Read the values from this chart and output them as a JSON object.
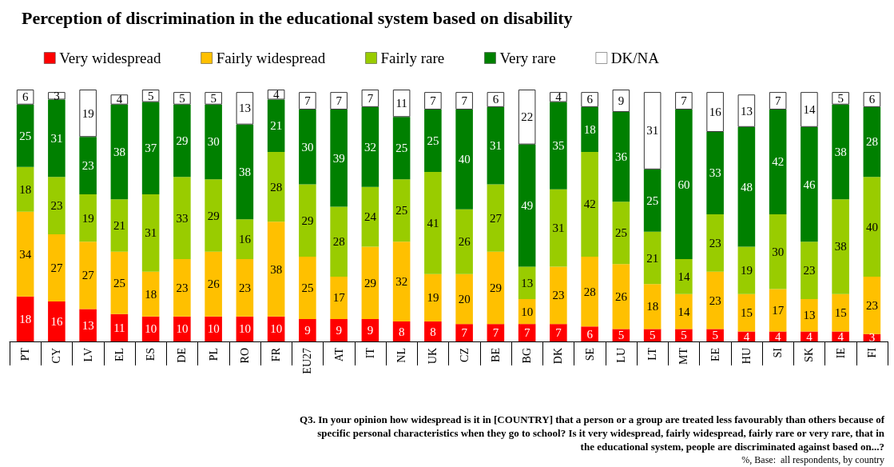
{
  "chart_data": {
    "type": "bar",
    "stacked": true,
    "data_labels": true,
    "legend": "top",
    "title": "Perception of discrimination in the educational system based on disability",
    "categories": [
      "PT",
      "CY",
      "LV",
      "EL",
      "ES",
      "DE",
      "PL",
      "RO",
      "FR",
      "EU27",
      "AT",
      "IT",
      "NL",
      "UK",
      "CZ",
      "BE",
      "BG",
      "DK",
      "SE",
      "LU",
      "LT",
      "MT",
      "EE",
      "HU",
      "SI",
      "SK",
      "IE",
      "FI"
    ],
    "series": [
      {
        "name": "Very widespread",
        "color": "#ff0000",
        "values": [
          18,
          16,
          13,
          11,
          10,
          10,
          10,
          10,
          10,
          9,
          9,
          9,
          8,
          8,
          7,
          7,
          7,
          7,
          6,
          5,
          5,
          5,
          5,
          4,
          4,
          4,
          4,
          3
        ]
      },
      {
        "name": "Fairly widespread",
        "color": "#ffc000",
        "values": [
          34,
          27,
          27,
          25,
          18,
          23,
          26,
          23,
          38,
          25,
          17,
          29,
          32,
          19,
          20,
          29,
          10,
          23,
          28,
          26,
          18,
          14,
          23,
          15,
          17,
          13,
          15,
          23
        ]
      },
      {
        "name": "Fairly rare",
        "color": "#99cc00",
        "values": [
          18,
          23,
          19,
          21,
          31,
          33,
          29,
          16,
          28,
          29,
          28,
          24,
          25,
          41,
          26,
          27,
          13,
          31,
          42,
          25,
          21,
          14,
          23,
          19,
          30,
          23,
          38,
          40
        ]
      },
      {
        "name": "Very rare",
        "color": "#008000",
        "values": [
          25,
          31,
          23,
          38,
          37,
          29,
          30,
          38,
          21,
          30,
          39,
          32,
          25,
          25,
          40,
          31,
          49,
          35,
          18,
          36,
          25,
          60,
          33,
          48,
          42,
          46,
          38,
          28
        ]
      },
      {
        "name": "DK/NA",
        "color": "#ffffff",
        "values": [
          6,
          3,
          19,
          4,
          5,
          5,
          5,
          13,
          4,
          7,
          7,
          7,
          11,
          7,
          7,
          6,
          22,
          4,
          6,
          9,
          31,
          7,
          16,
          13,
          7,
          14,
          5,
          6
        ]
      }
    ],
    "annotations": [
      "Q3. In your opinion how widespread is it in [COUNTRY] that a person or a group are treated less favourably than others because of",
      "specific personal characteristics when they go to school? Is it very widespread, fairly widespread, fairly rare or very rare, that in",
      "the educational system, people are discriminated against based on...?",
      "%, Base:  all respondents, by country"
    ]
  }
}
